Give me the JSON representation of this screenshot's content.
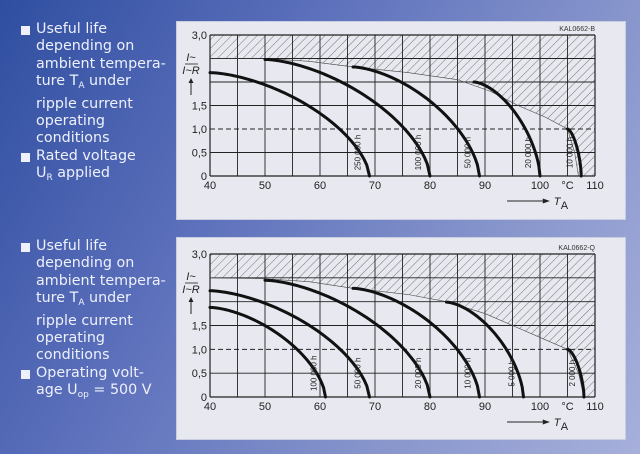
{
  "bullets_top": [
    {
      "lines": [
        {
          "t": "Useful life"
        },
        {
          "t": "depending on"
        },
        {
          "t": "ambient tempera-"
        },
        {
          "t": "ture T",
          "sub": "A",
          "after": " under"
        },
        {
          "t": "ripple current"
        },
        {
          "t": "operating"
        },
        {
          "t": "conditions"
        }
      ]
    },
    {
      "lines": [
        {
          "t": "Rated voltage"
        },
        {
          "t": "U",
          "sub": "R",
          "after": " applied"
        }
      ]
    }
  ],
  "bullets_bottom": [
    {
      "lines": [
        {
          "t": "Useful life"
        },
        {
          "t": "depending on"
        },
        {
          "t": "ambient tempera-"
        },
        {
          "t": "ture T",
          "sub": "A",
          "after": " under"
        },
        {
          "t": "ripple current"
        },
        {
          "t": "operating"
        },
        {
          "t": "conditions"
        }
      ]
    },
    {
      "lines": [
        {
          "t": "Operating volt-"
        },
        {
          "t": "age U",
          "sub": "op",
          "after": " = 500 V"
        }
      ]
    }
  ],
  "colors": {
    "background": "#5b6fbb",
    "panel": "#e8e9f0",
    "curve": "#111111",
    "text": "#eef1fb"
  },
  "chart_data": [
    {
      "type": "line",
      "code": "KAL0662-B",
      "xlabel": "T",
      "xlabel_sub": "A",
      "x_unit": "°C",
      "ylabel": "I~",
      "ylabel_den": "I~R",
      "xlim": [
        40,
        110
      ],
      "ylim": [
        0,
        3.0
      ],
      "x_ticks": [
        "40",
        "50",
        "60",
        "70",
        "80",
        "90",
        "100",
        "°C",
        "110"
      ],
      "y_ticks": [
        {
          "v": 3.0,
          "label": "3,0"
        },
        {
          "v": 1.5,
          "label": "1,5"
        },
        {
          "v": 1.0,
          "label": "1,0"
        },
        {
          "v": 0.5,
          "label": "0,5"
        },
        {
          "v": 0,
          "label": "0"
        }
      ],
      "grid": true,
      "dashed_reference_y": 1.0,
      "limit_boundary": [
        [
          40,
          2.5
        ],
        [
          50,
          2.5
        ],
        [
          58,
          2.44
        ],
        [
          66,
          2.32
        ],
        [
          76,
          2.2
        ],
        [
          85,
          2.05
        ],
        [
          91,
          1.8
        ],
        [
          96,
          1.5
        ],
        [
          101,
          1.25
        ],
        [
          105,
          1.0
        ],
        [
          106.3,
          0.5
        ],
        [
          107,
          0
        ]
      ],
      "series": [
        {
          "name": "250 000 h",
          "start": [
            40,
            2.2
          ],
          "end_T": 69
        },
        {
          "name": "100 000 h",
          "start": [
            50,
            2.48
          ],
          "end_T": 80
        },
        {
          "name": "50 000 h",
          "start": [
            66,
            2.32
          ],
          "end_T": 89
        },
        {
          "name": "20 000 h",
          "start": [
            88,
            2.0
          ],
          "end_T": 100
        },
        {
          "name": "10 000 h",
          "start": [
            105,
            1.0
          ],
          "end_T": 107.5
        }
      ]
    },
    {
      "type": "line",
      "code": "KAL0662-Q",
      "xlabel": "T",
      "xlabel_sub": "A",
      "x_unit": "°C",
      "ylabel": "I~",
      "ylabel_den": "I~R",
      "xlim": [
        40,
        110
      ],
      "ylim": [
        0,
        3.0
      ],
      "x_ticks": [
        "40",
        "50",
        "60",
        "70",
        "80",
        "90",
        "100",
        "°C",
        "110"
      ],
      "y_ticks": [
        {
          "v": 3.0,
          "label": "3,0"
        },
        {
          "v": 1.5,
          "label": "1,5"
        },
        {
          "v": 1.0,
          "label": "1,0"
        },
        {
          "v": 0.5,
          "label": "0,5"
        },
        {
          "v": 0,
          "label": "0"
        }
      ],
      "grid": true,
      "dashed_reference_y": 1.0,
      "limit_boundary": [
        [
          40,
          2.5
        ],
        [
          50,
          2.48
        ],
        [
          58,
          2.42
        ],
        [
          66,
          2.28
        ],
        [
          76,
          2.15
        ],
        [
          83,
          2.0
        ],
        [
          90,
          1.75
        ],
        [
          96,
          1.45
        ],
        [
          101,
          1.2
        ],
        [
          105,
          1.0
        ],
        [
          107,
          0.5
        ],
        [
          108,
          0
        ]
      ],
      "series": [
        {
          "name": "100 000 h",
          "start": [
            40,
            1.88
          ],
          "end_T": 61
        },
        {
          "name": "50 000 h",
          "start": [
            40,
            2.23
          ],
          "end_T": 69
        },
        {
          "name": "20 000 h",
          "start": [
            50,
            2.45
          ],
          "end_T": 80
        },
        {
          "name": "10 000 h",
          "start": [
            66,
            2.28
          ],
          "end_T": 89
        },
        {
          "name": "5 000 h",
          "start": [
            83,
            1.99
          ],
          "end_T": 97
        },
        {
          "name": "2 000 h",
          "start": [
            105,
            1.0
          ],
          "end_T": 108
        }
      ]
    }
  ]
}
